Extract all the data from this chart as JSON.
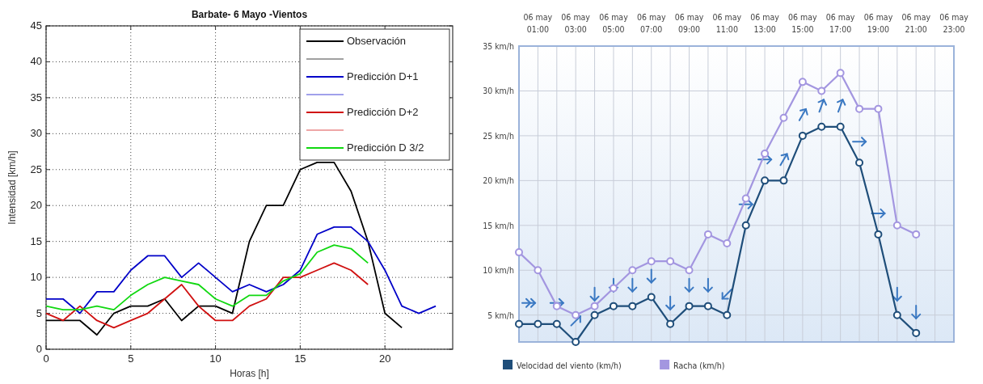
{
  "chart_data": [
    {
      "type": "line",
      "title": "Barbate- 6 Mayo -Vientos",
      "xlabel": "Horas [h]",
      "ylabel": "Intensidad [km/h]",
      "xlim": [
        0,
        24
      ],
      "xticks": [
        0,
        5,
        10,
        15,
        20
      ],
      "ylim": [
        0,
        45
      ],
      "yticks": [
        0,
        5,
        10,
        15,
        20,
        25,
        30,
        35,
        40,
        45
      ],
      "grid": true,
      "legend": "top right",
      "marker": "none",
      "series": [
        {
          "name": "Observación",
          "color": "#000000",
          "x": [
            0,
            1,
            2,
            3,
            4,
            5,
            6,
            7,
            8,
            9,
            10,
            11,
            12,
            13,
            14,
            15,
            16,
            17,
            18,
            19,
            20,
            21
          ],
          "values": [
            4,
            4,
            4,
            2,
            5,
            6,
            6,
            7,
            4,
            6,
            6,
            5,
            15,
            20,
            20,
            25,
            26,
            26,
            22,
            15,
            5,
            3
          ]
        },
        {
          "name": "Predicción D+1",
          "color": "#0000c8",
          "x": [
            0,
            1,
            2,
            3,
            4,
            5,
            6,
            7,
            8,
            9,
            10,
            11,
            12,
            13,
            14,
            15,
            16,
            17,
            18,
            19,
            20,
            21,
            22,
            23
          ],
          "values": [
            7,
            7,
            5,
            8,
            8,
            11,
            13,
            13,
            10,
            12,
            10,
            8,
            9,
            8,
            9,
            11,
            16,
            17,
            17,
            15,
            11,
            6,
            5,
            6
          ]
        },
        {
          "name": "Predicción D+2",
          "color": "#d01010",
          "x": [
            0,
            1,
            2,
            3,
            4,
            5,
            6,
            7,
            8,
            9,
            10,
            11,
            12,
            13,
            14,
            15,
            16,
            17,
            18,
            19
          ],
          "values": [
            5,
            4,
            6,
            4,
            3,
            4,
            5,
            7,
            9,
            6,
            4,
            4,
            6,
            7,
            10,
            10,
            11,
            12,
            11,
            9
          ]
        },
        {
          "name": "Predicción D 3/2",
          "color": "#10d810",
          "x": [
            0,
            1,
            2,
            3,
            4,
            5,
            6,
            7,
            8,
            9,
            10,
            11,
            12,
            13,
            14,
            15,
            16,
            17,
            18,
            19
          ],
          "values": [
            6,
            5.5,
            5.5,
            6,
            5.5,
            7.5,
            9,
            10,
            9.5,
            9,
            7,
            6,
            7.5,
            7.5,
            9.5,
            10.5,
            13.5,
            14.5,
            14,
            12
          ]
        }
      ]
    },
    {
      "type": "line",
      "categories": [
        null,
        "06 may 01:00",
        null,
        "06 may 03:00",
        null,
        "06 may 05:00",
        null,
        "06 may 07:00",
        null,
        "06 may 09:00",
        null,
        "06 may 11:00",
        null,
        "06 may 13:00",
        null,
        "06 may 15:00",
        null,
        "06 may 17:00",
        null,
        "06 may 19:00",
        null,
        "06 may 21:00",
        null,
        "06 may 23:00"
      ],
      "ylim": [
        2,
        35
      ],
      "yticks": [
        {
          "value": 5,
          "label": "5 km/h"
        },
        {
          "value": 10,
          "label": "10 km/h"
        },
        {
          "value": 15,
          "label": "15 km/h"
        },
        {
          "value": 20,
          "label": "20 km/h"
        },
        {
          "value": 25,
          "label": "25 km/h"
        },
        {
          "value": 30,
          "label": "30 km/h"
        },
        {
          "value": 35,
          "label": "35 km/h"
        }
      ],
      "grid": true,
      "legend": "bottom",
      "marker": "circle",
      "series": [
        {
          "name": "Velocidad del viento (km/h)",
          "color": "#1f4e7a",
          "values": [
            4,
            4,
            4,
            2,
            5,
            6,
            6,
            7,
            4,
            6,
            6,
            5,
            15,
            20,
            20,
            25,
            26,
            26,
            22,
            14,
            5,
            3,
            null,
            null
          ]
        },
        {
          "name": "Racha (km/h)",
          "color": "#a396e0",
          "values": [
            12,
            10,
            6,
            5,
            6,
            8,
            10,
            11,
            11,
            10,
            14,
            13,
            18,
            23,
            27,
            31,
            30,
            32,
            28,
            28,
            15,
            14,
            null,
            null
          ]
        }
      ]
    }
  ]
}
